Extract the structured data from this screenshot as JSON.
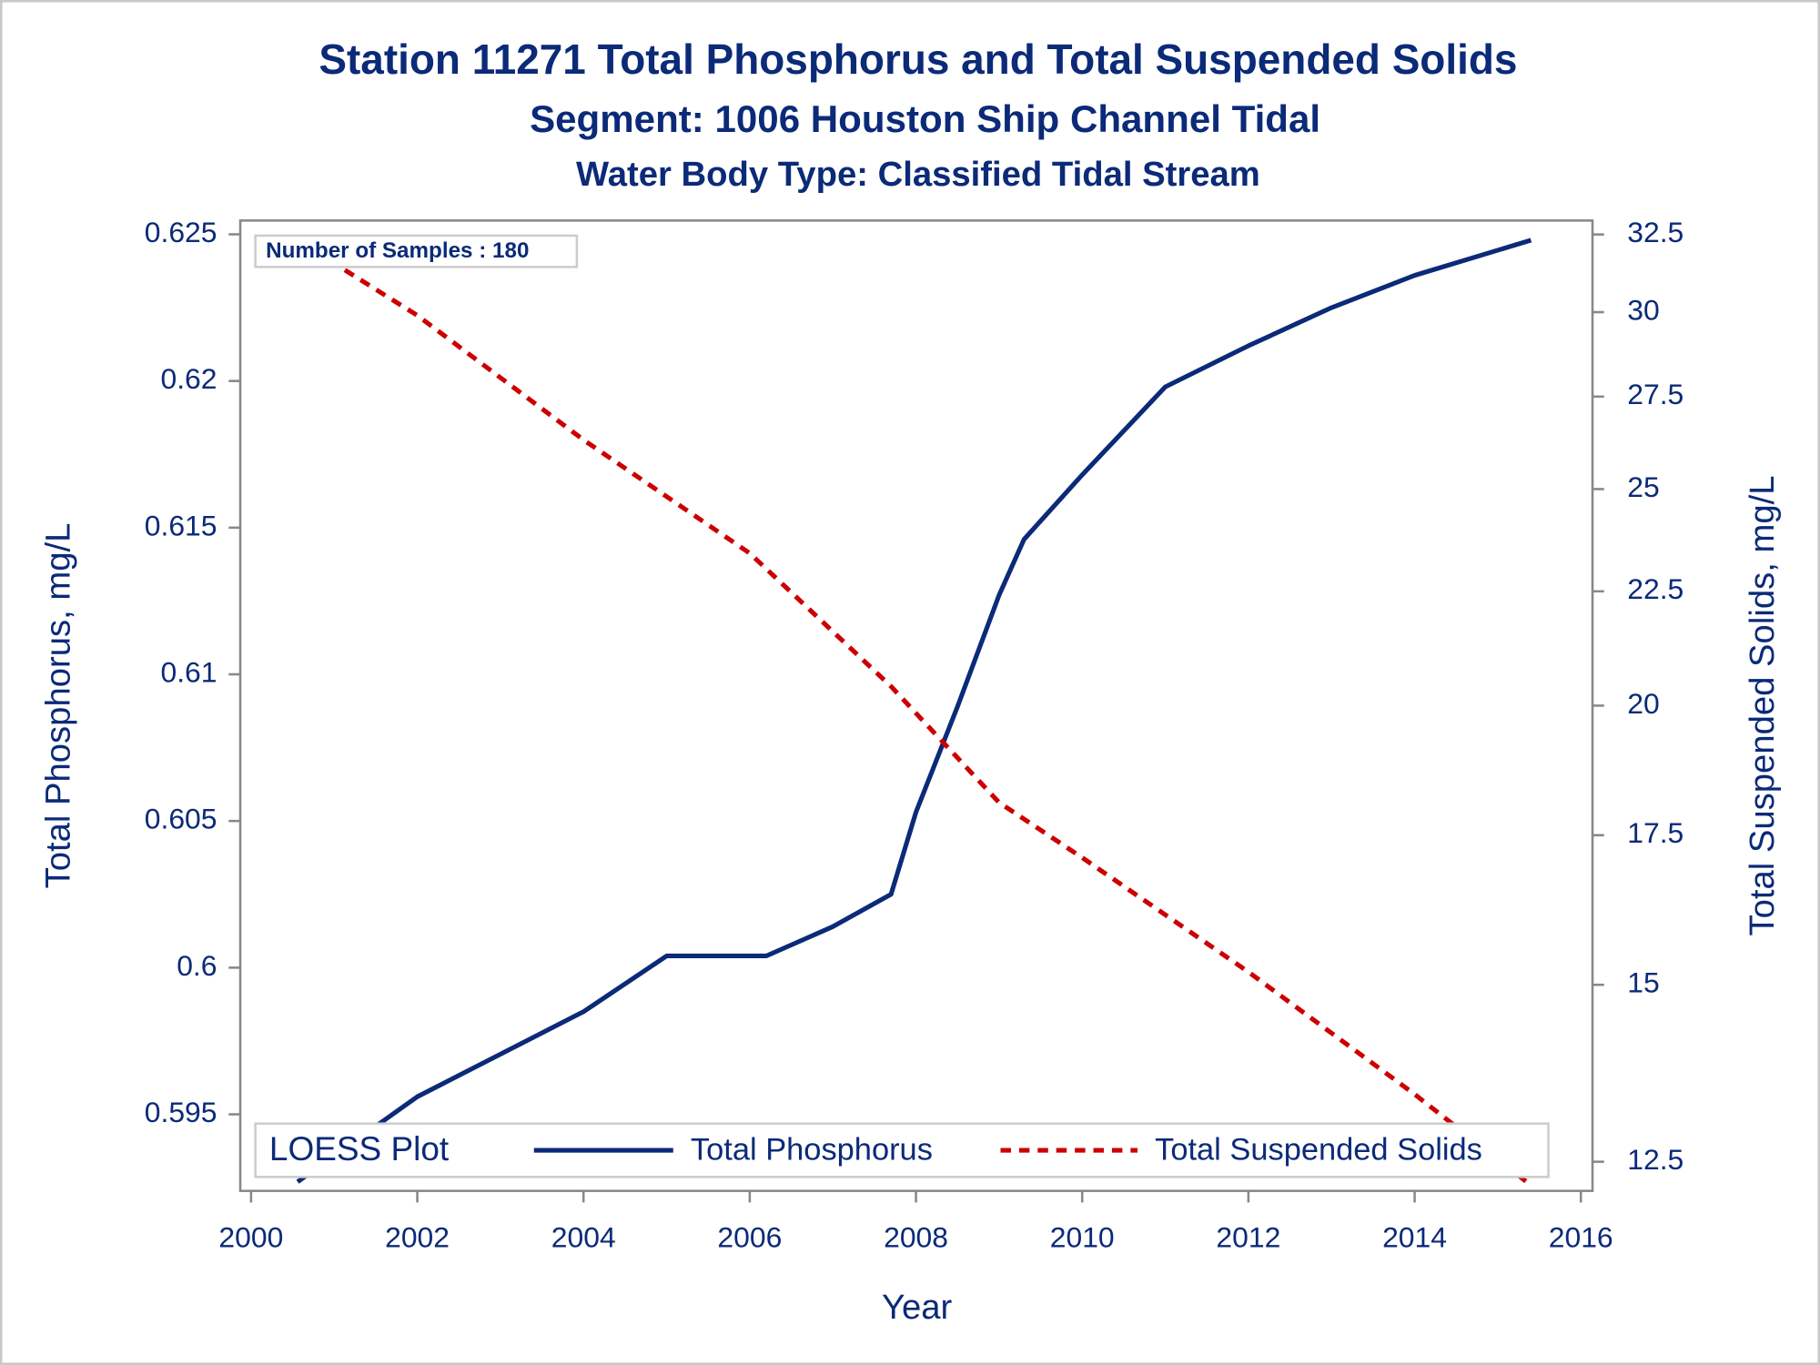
{
  "chart_data": {
    "type": "line",
    "title": "Station 11271  Total Phosphorus and Total Suspended Solids",
    "subtitle": "Segment: 1006  Houston Ship Channel Tidal",
    "subtitle2": "Water Body Type: Classified Tidal Stream",
    "xlabel": "Year",
    "ylabel": "Total Phosphorus, mg/L",
    "y2label": "Total Suspended Solids, mg/L",
    "annotation": "Number of Samples : 180",
    "legend_title": "LOESS Plot",
    "legend": "bottom",
    "xlim": [
      1999.87,
      2016.14
    ],
    "xticks": [
      2000,
      2002,
      2004,
      2006,
      2008,
      2010,
      2012,
      2014,
      2016
    ],
    "ylim": [
      0.59239,
      0.62547
    ],
    "yticks": [
      0.595,
      0.6,
      0.605,
      0.61,
      0.615,
      0.62,
      0.625
    ],
    "y2lim": [
      12.13,
      32.97
    ],
    "y2scale": "log",
    "y2ticks": [
      12.5,
      15,
      17.5,
      20,
      22.5,
      25,
      27.5,
      30,
      32.5
    ],
    "series": [
      {
        "name": "Total Phosphorus",
        "color": "#0b2a78",
        "dash": false,
        "x": [
          2000.56,
          2002,
          2004,
          2005,
          2006.2,
          2007,
          2007.7,
          2008,
          2008.5,
          2009,
          2009.3,
          2010,
          2010.5,
          2011,
          2012,
          2013,
          2014,
          2015.4
        ],
        "values": [
          0.5927,
          0.5956,
          0.5985,
          0.6004,
          0.6004,
          0.6014,
          0.6025,
          0.6053,
          0.6089,
          0.6127,
          0.6146,
          0.6168,
          0.6183,
          0.6198,
          0.6212,
          0.6225,
          0.6236,
          0.6248
        ]
      },
      {
        "name": "Total Suspended Solids",
        "color": "#cc0000",
        "dash": true,
        "axis": "y2",
        "x": [
          2000.56,
          2002,
          2004,
          2006,
          2007.7,
          2009,
          2010,
          2012,
          2014,
          2015.4
        ],
        "values": [
          32.3,
          29.9,
          26.3,
          23.4,
          20.4,
          18.1,
          17.1,
          15.2,
          13.4,
          12.2
        ]
      }
    ]
  }
}
